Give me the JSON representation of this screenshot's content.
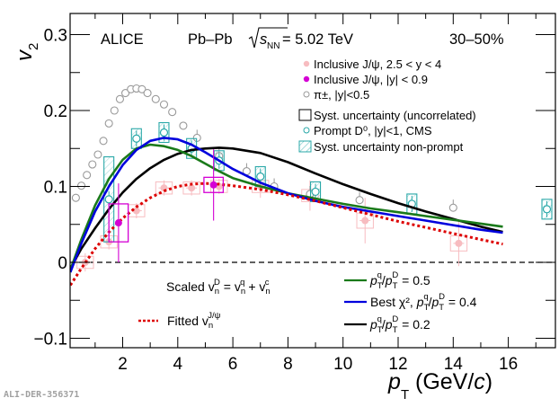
{
  "chart_data": {
    "type": "scatter",
    "title": "",
    "xlabel": "p_T (GeV/c)",
    "ylabel": "v_2",
    "xlim": [
      0,
      17.8
    ],
    "ylim": [
      -0.113,
      0.33
    ],
    "xticks": [
      2,
      4,
      6,
      8,
      10,
      12,
      14,
      16
    ],
    "xtick_labels": [
      "2",
      "4",
      "6",
      "8",
      "10",
      "12",
      "14",
      "16"
    ],
    "yticks": [
      -0.1,
      0,
      0.1,
      0.2,
      0.3
    ],
    "ytick_labels": [
      "−0.1",
      "0",
      "0.1",
      "0.2",
      "0.3"
    ],
    "grid": false,
    "zero_line": true,
    "annotations": {
      "experiment": "ALICE",
      "system": "Pb–Pb",
      "energy_prefix": "s",
      "energy_sub": "NN",
      "energy_value": " = 5.02 TeV",
      "centrality": "30–50%",
      "model_title_prefix": "Scaled v",
      "model_title_rest": " = v",
      "model_title_plus": " + v",
      "watermark": "ALI-DER-356371"
    },
    "legend_top": {
      "placement": "top-right",
      "entries": [
        {
          "label": "Inclusive J/ψ, 2.5 < y < 4",
          "color": "#f7bcc0",
          "marker": "filled-circle"
        },
        {
          "label": "Inclusive J/ψ, |y| < 0.9",
          "color": "#d400d4",
          "marker": "filled-circle"
        },
        {
          "label": "π±, |y|<0.5",
          "color": "#999999",
          "marker": "open-circle"
        },
        {
          "label": "Syst. uncertainty (uncorrelated)",
          "color": "#000000",
          "marker": "open-box"
        },
        {
          "label": "Prompt D⁰, |y|<1, CMS",
          "color": "#2aa8a8",
          "marker": "open-circle"
        },
        {
          "label": "Syst. uncertainty non-prompt",
          "color": "#2aa8a8",
          "marker": "hatched-box"
        }
      ]
    },
    "legend_bottom": {
      "placement": "bottom-right",
      "entries": [
        {
          "label": "p_T^q/p_T^D = 0.5",
          "value": "0.5",
          "color": "#1a7a1a"
        },
        {
          "label": "Best χ², p_T^q/p_T^D = 0.4",
          "value": "0.4",
          "prefix": "Best χ², ",
          "color": "#0000dd"
        },
        {
          "label": "p_T^q/p_T^D = 0.2",
          "value": "0.2",
          "color": "#000000"
        }
      ]
    },
    "legend_fit": {
      "label": "Fitted v_n^{J/ψ}",
      "text": "Fitted v",
      "sup": "J/ψ",
      "color": "#dd0000"
    },
    "series": [
      {
        "name": "Inclusive J/psi, 2.5<y<4",
        "color": "#f7bcc0",
        "points": [
          {
            "x": 0.64,
            "y": 0.0,
            "ey": 0.012,
            "sx": 0.3,
            "sy": 0.008
          },
          {
            "x": 1.5,
            "y": 0.027,
            "ey": 0.01,
            "sx": 0.3,
            "sy": 0.008
          },
          {
            "x": 2.5,
            "y": 0.068,
            "ey": 0.01,
            "sx": 0.3,
            "sy": 0.008
          },
          {
            "x": 3.5,
            "y": 0.098,
            "ey": 0.01,
            "sx": 0.3,
            "sy": 0.008
          },
          {
            "x": 4.5,
            "y": 0.098,
            "ey": 0.01,
            "sx": 0.3,
            "sy": 0.008
          },
          {
            "x": 5.5,
            "y": 0.1,
            "ey": 0.01,
            "sx": 0.3,
            "sy": 0.008
          },
          {
            "x": 7.0,
            "y": 0.1,
            "ey": 0.015,
            "sx": 0.3,
            "sy": 0.008
          },
          {
            "x": 8.8,
            "y": 0.088,
            "ey": 0.02,
            "sx": 0.3,
            "sy": 0.008
          },
          {
            "x": 10.8,
            "y": 0.055,
            "ey": 0.03,
            "sx": 0.3,
            "sy": 0.01
          },
          {
            "x": 14.2,
            "y": 0.025,
            "ey": 0.03,
            "sx": 0.3,
            "sy": 0.01
          }
        ]
      },
      {
        "name": "Inclusive J/psi, |y|<0.9",
        "color": "#d400d4",
        "points": [
          {
            "x": 1.85,
            "y": 0.052,
            "ey": 0.052,
            "sx": 0.35,
            "sy": 0.025
          },
          {
            "x": 5.3,
            "y": 0.102,
            "ey": 0.047,
            "sx": 0.35,
            "sy": 0.01
          }
        ]
      },
      {
        "name": "pi+-, |y|<0.5",
        "color": "#999999",
        "points": [
          {
            "x": 0.3,
            "y": 0.085
          },
          {
            "x": 0.5,
            "y": 0.101
          },
          {
            "x": 0.7,
            "y": 0.115
          },
          {
            "x": 0.9,
            "y": 0.129
          },
          {
            "x": 1.1,
            "y": 0.142
          },
          {
            "x": 1.3,
            "y": 0.16
          },
          {
            "x": 1.5,
            "y": 0.183
          },
          {
            "x": 1.7,
            "y": 0.2
          },
          {
            "x": 1.9,
            "y": 0.215
          },
          {
            "x": 2.1,
            "y": 0.223
          },
          {
            "x": 2.3,
            "y": 0.228
          },
          {
            "x": 2.5,
            "y": 0.229
          },
          {
            "x": 2.7,
            "y": 0.228
          },
          {
            "x": 2.9,
            "y": 0.223
          },
          {
            "x": 3.2,
            "y": 0.215
          },
          {
            "x": 3.5,
            "y": 0.208
          },
          {
            "x": 3.8,
            "y": 0.198
          },
          {
            "x": 4.2,
            "y": 0.18
          },
          {
            "x": 4.7,
            "y": 0.164
          },
          {
            "x": 5.5,
            "y": 0.14
          },
          {
            "x": 6.5,
            "y": 0.12
          },
          {
            "x": 7.5,
            "y": 0.1
          },
          {
            "x": 8.8,
            "y": 0.09
          },
          {
            "x": 10.6,
            "y": 0.082
          },
          {
            "x": 14.0,
            "y": 0.072
          }
        ]
      },
      {
        "name": "Prompt D0, |y|<1, CMS",
        "color": "#2aa8a8",
        "points": [
          {
            "x": 1.5,
            "y": 0.083,
            "sx": 0.15,
            "sy": 0.056
          },
          {
            "x": 2.5,
            "y": 0.163,
            "sx": 0.15,
            "sy": 0.013
          },
          {
            "x": 3.5,
            "y": 0.171,
            "sx": 0.15,
            "sy": 0.013
          },
          {
            "x": 4.5,
            "y": 0.15,
            "sx": 0.15,
            "sy": 0.013
          },
          {
            "x": 5.5,
            "y": 0.134,
            "sx": 0.15,
            "sy": 0.013
          },
          {
            "x": 7.0,
            "y": 0.113,
            "sx": 0.15,
            "sy": 0.013
          },
          {
            "x": 9.0,
            "y": 0.093,
            "sx": 0.15,
            "sy": 0.013
          },
          {
            "x": 12.5,
            "y": 0.077,
            "sx": 0.15,
            "sy": 0.013
          },
          {
            "x": 17.4,
            "y": 0.07,
            "sx": 0.15,
            "sy": 0.013
          }
        ]
      },
      {
        "name": "pT^q/pT^D = 0.5",
        "type": "line",
        "color": "#1a7a1a",
        "x": [
          0.1,
          0.5,
          1.0,
          1.5,
          2.0,
          2.5,
          3.0,
          3.5,
          4.0,
          4.5,
          5.0,
          5.5,
          6.0,
          7.0,
          8.0,
          9.0,
          10.0,
          11.0,
          12.0,
          13.0,
          14.0,
          15.0,
          15.8
        ],
        "y": [
          -0.01,
          0.03,
          0.075,
          0.11,
          0.135,
          0.15,
          0.155,
          0.153,
          0.148,
          0.14,
          0.13,
          0.12,
          0.111,
          0.1,
          0.091,
          0.084,
          0.077,
          0.071,
          0.066,
          0.061,
          0.056,
          0.051,
          0.047
        ]
      },
      {
        "name": "Best chi2, pT^q/pT^D = 0.4",
        "type": "line",
        "color": "#0000dd",
        "x": [
          0.1,
          0.5,
          1.0,
          1.5,
          2.0,
          2.5,
          3.0,
          3.5,
          4.0,
          4.5,
          5.0,
          5.5,
          6.0,
          7.0,
          8.0,
          9.0,
          10.0,
          11.0,
          12.0,
          13.0,
          14.0,
          15.0,
          15.8
        ],
        "y": [
          -0.013,
          0.025,
          0.067,
          0.1,
          0.128,
          0.148,
          0.16,
          0.164,
          0.162,
          0.155,
          0.145,
          0.134,
          0.123,
          0.105,
          0.091,
          0.081,
          0.073,
          0.067,
          0.061,
          0.055,
          0.049,
          0.043,
          0.039
        ]
      },
      {
        "name": "pT^q/pT^D = 0.2",
        "type": "line",
        "color": "#000000",
        "x": [
          0.1,
          0.5,
          1.0,
          1.5,
          2.0,
          2.5,
          3.0,
          3.5,
          4.0,
          4.5,
          5.0,
          5.5,
          6.0,
          7.0,
          8.0,
          9.0,
          10.0,
          11.0,
          12.0,
          13.0,
          14.0,
          15.0,
          15.8
        ],
        "y": [
          -0.008,
          0.018,
          0.045,
          0.07,
          0.092,
          0.11,
          0.124,
          0.135,
          0.143,
          0.148,
          0.15,
          0.151,
          0.15,
          0.144,
          0.132,
          0.117,
          0.103,
          0.09,
          0.078,
          0.067,
          0.057,
          0.047,
          0.04
        ]
      },
      {
        "name": "Fitted v_n^J/psi",
        "type": "line",
        "style": "dotted",
        "color": "#dd0000",
        "x": [
          0.1,
          0.5,
          1.0,
          1.5,
          2.0,
          2.5,
          3.0,
          3.5,
          4.0,
          4.5,
          5.0,
          5.5,
          6.0,
          7.0,
          8.0,
          9.0,
          10.0,
          11.0,
          12.0,
          13.0,
          14.0,
          15.0,
          15.8
        ],
        "y": [
          -0.03,
          -0.008,
          0.018,
          0.04,
          0.058,
          0.073,
          0.085,
          0.094,
          0.1,
          0.103,
          0.104,
          0.103,
          0.101,
          0.096,
          0.089,
          0.081,
          0.072,
          0.063,
          0.054,
          0.046,
          0.038,
          0.03,
          0.024
        ]
      }
    ]
  }
}
